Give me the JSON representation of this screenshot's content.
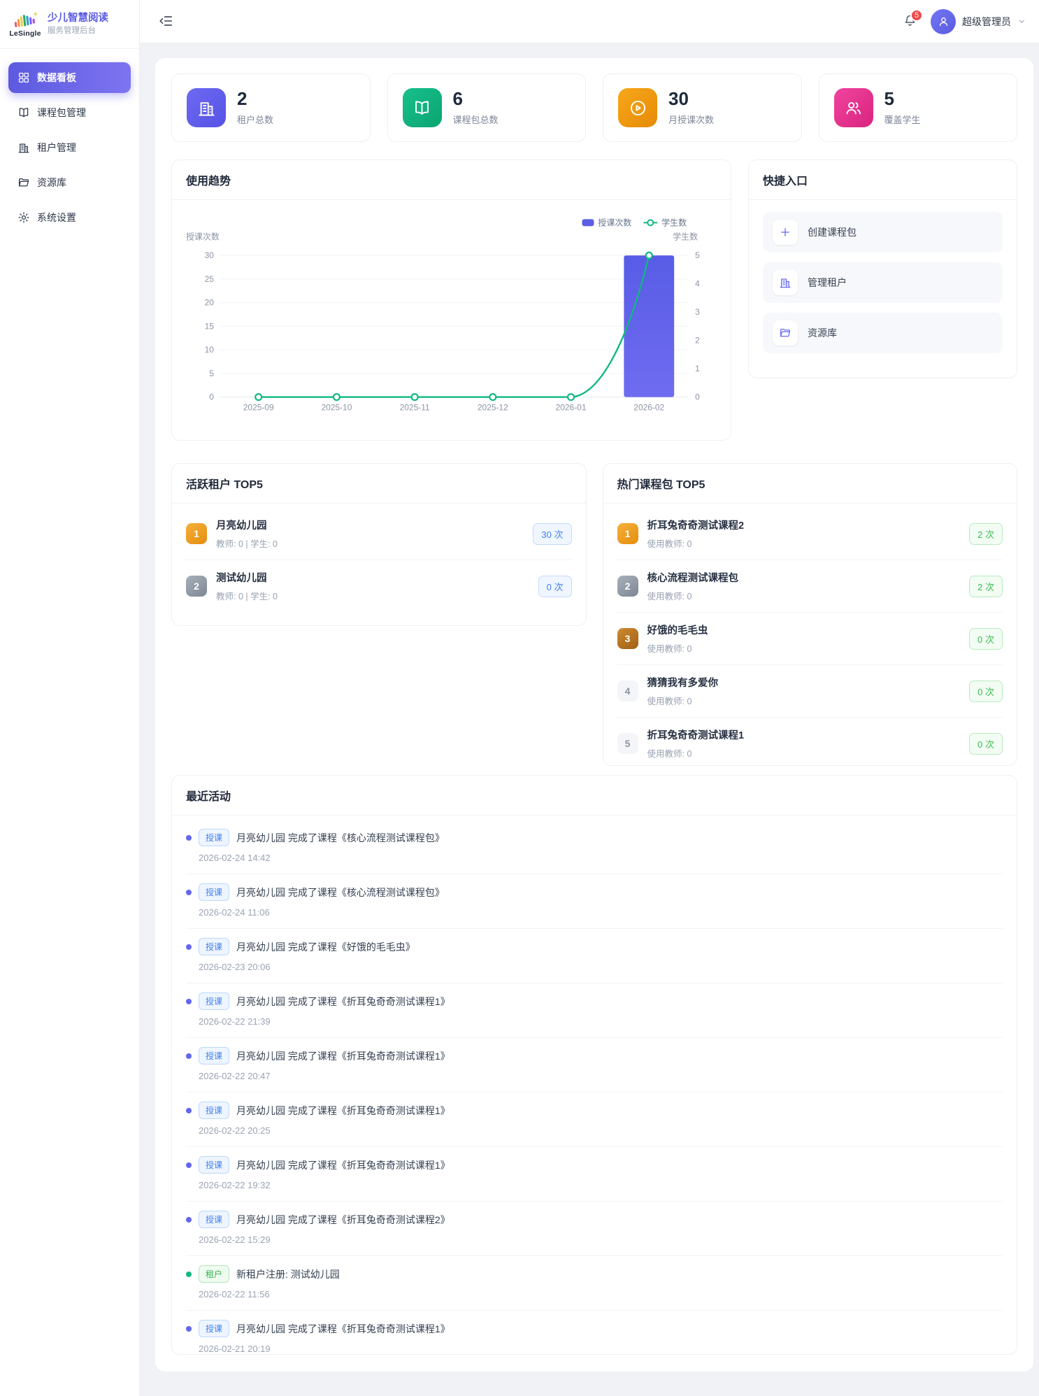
{
  "sidebar": {
    "logo_text": "LeSingle",
    "title": "少儿智慧阅读",
    "subtitle": "服务管理后台",
    "items": [
      {
        "label": "数据看板",
        "icon": "dashboard-icon",
        "active": true
      },
      {
        "label": "课程包管理",
        "icon": "book-icon",
        "active": false
      },
      {
        "label": "租户管理",
        "icon": "building-icon",
        "active": false
      },
      {
        "label": "资源库",
        "icon": "folder-icon",
        "active": false
      },
      {
        "label": "系统设置",
        "icon": "gear-icon",
        "active": false
      }
    ]
  },
  "header": {
    "notification_count": "5",
    "username": "超级管理员"
  },
  "stats": {
    "cards": [
      {
        "value": "2",
        "label": "租户总数",
        "icon": "building-icon",
        "color": "#6366f1"
      },
      {
        "value": "6",
        "label": "课程包总数",
        "icon": "book-icon",
        "color": "#10b981"
      },
      {
        "value": "30",
        "label": "月授课次数",
        "icon": "play-icon",
        "color": "#f59e0b"
      },
      {
        "value": "5",
        "label": "覆盖学生",
        "icon": "students-icon",
        "color": "#ec4899"
      }
    ]
  },
  "trend": {
    "title": "使用趋势"
  },
  "chart_data": {
    "type": "bar+line",
    "categories": [
      "2025-09",
      "2025-10",
      "2025-11",
      "2025-12",
      "2026-01",
      "2026-02"
    ],
    "series": [
      {
        "name": "授课次数",
        "type": "bar",
        "axis": "left",
        "color": "#5b5fe3",
        "values": [
          0,
          0,
          0,
          0,
          0,
          30
        ]
      },
      {
        "name": "学生数",
        "type": "line",
        "axis": "right",
        "color": "#10b981",
        "values": [
          0,
          0,
          0,
          0,
          0,
          5
        ]
      }
    ],
    "left_axis": {
      "label": "授课次数",
      "max": 30,
      "ticks": [
        30,
        25,
        20,
        15,
        10,
        5,
        0
      ]
    },
    "right_axis": {
      "label": "学生数",
      "max": 5,
      "ticks": [
        5,
        4,
        3,
        2,
        1,
        0
      ]
    },
    "grid": true,
    "legend_position": "top-right"
  },
  "quick": {
    "title": "快捷入口",
    "items": [
      {
        "label": "创建课程包",
        "icon": "plus-icon"
      },
      {
        "label": "管理租户",
        "icon": "building-icon"
      },
      {
        "label": "资源库",
        "icon": "folder-icon"
      }
    ]
  },
  "active_tenants": {
    "title": "活跃租户 TOP5",
    "items": [
      {
        "rank": "1",
        "name": "月亮幼儿园",
        "meta": "教师: 0 | 学生: 0",
        "count": "30 次"
      },
      {
        "rank": "2",
        "name": "测试幼儿园",
        "meta": "教师: 0 | 学生: 0",
        "count": "0 次"
      }
    ]
  },
  "hot_packages": {
    "title": "热门课程包 TOP5",
    "items": [
      {
        "rank": "1",
        "name": "折耳兔奇奇测试课程2",
        "meta": "使用教师: 0",
        "count": "2 次"
      },
      {
        "rank": "2",
        "name": "核心流程测试课程包",
        "meta": "使用教师: 0",
        "count": "2 次"
      },
      {
        "rank": "3",
        "name": "好饿的毛毛虫",
        "meta": "使用教师: 0",
        "count": "0 次"
      },
      {
        "rank": "4",
        "name": "猜猜我有多爱你",
        "meta": "使用教师: 0",
        "count": "0 次"
      },
      {
        "rank": "5",
        "name": "折耳兔奇奇测试课程1",
        "meta": "使用教师: 0",
        "count": "0 次"
      }
    ]
  },
  "activities": {
    "title": "最近活动",
    "items": [
      {
        "tag": "授课",
        "type": "class",
        "text": "月亮幼儿园 完成了课程《核心流程测试课程包》",
        "time": "2026-02-24 14:42"
      },
      {
        "tag": "授课",
        "type": "class",
        "text": "月亮幼儿园 完成了课程《核心流程测试课程包》",
        "time": "2026-02-24 11:06"
      },
      {
        "tag": "授课",
        "type": "class",
        "text": "月亮幼儿园 完成了课程《好饿的毛毛虫》",
        "time": "2026-02-23 20:06"
      },
      {
        "tag": "授课",
        "type": "class",
        "text": "月亮幼儿园 完成了课程《折耳兔奇奇测试课程1》",
        "time": "2026-02-22 21:39"
      },
      {
        "tag": "授课",
        "type": "class",
        "text": "月亮幼儿园 完成了课程《折耳兔奇奇测试课程1》",
        "time": "2026-02-22 20:47"
      },
      {
        "tag": "授课",
        "type": "class",
        "text": "月亮幼儿园 完成了课程《折耳兔奇奇测试课程1》",
        "time": "2026-02-22 20:25"
      },
      {
        "tag": "授课",
        "type": "class",
        "text": "月亮幼儿园 完成了课程《折耳兔奇奇测试课程1》",
        "time": "2026-02-22 19:32"
      },
      {
        "tag": "授课",
        "type": "class",
        "text": "月亮幼儿园 完成了课程《折耳兔奇奇测试课程2》",
        "time": "2026-02-22 15:29"
      },
      {
        "tag": "租户",
        "type": "tenant",
        "text": "新租户注册: 测试幼儿园",
        "time": "2026-02-22 11:56"
      },
      {
        "tag": "授课",
        "type": "class",
        "text": "月亮幼儿园 完成了课程《折耳兔奇奇测试课程1》",
        "time": "2026-02-21 20:19"
      }
    ]
  }
}
